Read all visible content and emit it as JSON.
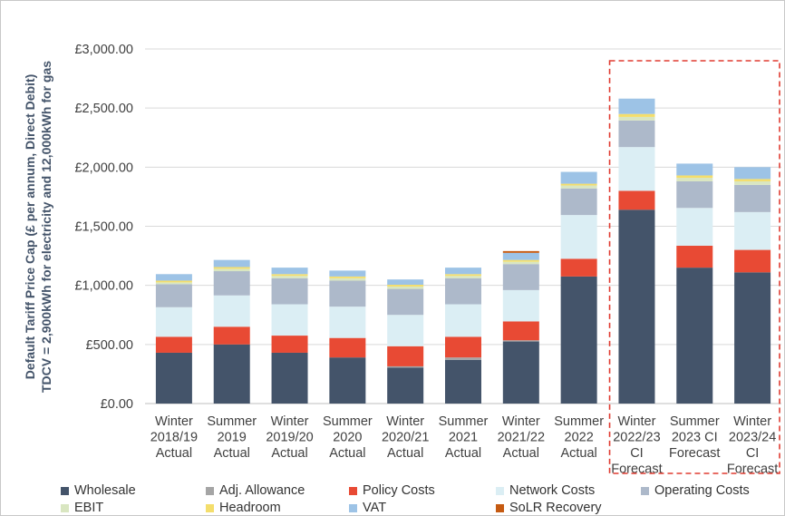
{
  "chart_data": {
    "type": "bar",
    "stacked": true,
    "title": "",
    "ylabel_lines": [
      "Default Tariff Price Cap (£ per annum, Direct Debit)",
      "TDCV = 2,900kWh for electricity and 12,000kWh for gas"
    ],
    "ylim": [
      0,
      3000
    ],
    "yticks": [
      "£0.00",
      "£500.00",
      "£1,000.00",
      "£1,500.00",
      "£2,000.00",
      "£2,500.00",
      "£3,000.00"
    ],
    "ytick_values": [
      0,
      500,
      1000,
      1500,
      2000,
      2500,
      3000
    ],
    "gridlines": true,
    "categories": [
      [
        "Winter",
        "2018/19",
        "Actual"
      ],
      [
        "Summer",
        "2019",
        "Actual"
      ],
      [
        "Winter",
        "2019/20",
        "Actual"
      ],
      [
        "Summer",
        "2020",
        "Actual"
      ],
      [
        "Winter",
        "2020/21",
        "Actual"
      ],
      [
        "Summer",
        "2021",
        "Actual"
      ],
      [
        "Winter",
        "2021/22",
        "Actual"
      ],
      [
        "Summer",
        "2022",
        "Actual"
      ],
      [
        "Winter",
        "2022/23",
        "CI",
        "Forecast"
      ],
      [
        "Summer",
        "2023 CI",
        "Forecast"
      ],
      [
        "Winter",
        "2023/24",
        "CI",
        "Forecast"
      ]
    ],
    "highlight": {
      "from_index": 8,
      "to_index": 10,
      "style": "dashed",
      "color": "#e03c31"
    },
    "series": [
      {
        "name": "Wholesale",
        "color": "#44546a",
        "values": [
          430,
          500,
          430,
          390,
          305,
          370,
          525,
          1075,
          1640,
          1150,
          1110
        ]
      },
      {
        "name": "Adj. Allowance",
        "color": "#a5a5a5",
        "values": [
          0,
          0,
          0,
          0,
          10,
          20,
          10,
          0,
          0,
          0,
          0
        ]
      },
      {
        "name": "Policy Costs",
        "color": "#e84a34",
        "values": [
          135,
          150,
          145,
          165,
          170,
          175,
          160,
          150,
          160,
          185,
          190
        ]
      },
      {
        "name": "Network Costs",
        "color": "#dbeef4",
        "values": [
          250,
          265,
          265,
          265,
          265,
          275,
          265,
          370,
          370,
          320,
          320
        ]
      },
      {
        "name": "Operating Costs",
        "color": "#adb9ca",
        "values": [
          195,
          205,
          220,
          220,
          220,
          220,
          220,
          225,
          225,
          225,
          230
        ]
      },
      {
        "name": "EBIT",
        "color": "#d9e6c1",
        "values": [
          15,
          20,
          20,
          20,
          20,
          20,
          20,
          25,
          30,
          30,
          30
        ]
      },
      {
        "name": "Headroom",
        "color": "#f4de6c",
        "values": [
          15,
          15,
          15,
          15,
          15,
          15,
          15,
          15,
          25,
          20,
          20
        ]
      },
      {
        "name": "VAT",
        "color": "#9dc3e6",
        "values": [
          55,
          60,
          55,
          50,
          45,
          55,
          60,
          100,
          130,
          100,
          100
        ]
      },
      {
        "name": "SoLR Recovery",
        "color": "#c55a11",
        "values": [
          0,
          0,
          0,
          0,
          0,
          0,
          15,
          0,
          0,
          0,
          0
        ]
      }
    ]
  },
  "legend": [
    {
      "label": "Wholesale",
      "color": "#44546a"
    },
    {
      "label": "Adj. Allowance",
      "color": "#a5a5a5"
    },
    {
      "label": "Policy Costs",
      "color": "#e84a34"
    },
    {
      "label": "Network Costs",
      "color": "#dbeef4"
    },
    {
      "label": "Operating Costs",
      "color": "#adb9ca"
    },
    {
      "label": "EBIT",
      "color": "#d9e6c1"
    },
    {
      "label": "Headroom",
      "color": "#f4de6c"
    },
    {
      "label": "VAT",
      "color": "#9dc3e6"
    },
    {
      "label": "SoLR Recovery",
      "color": "#c55a11"
    }
  ]
}
